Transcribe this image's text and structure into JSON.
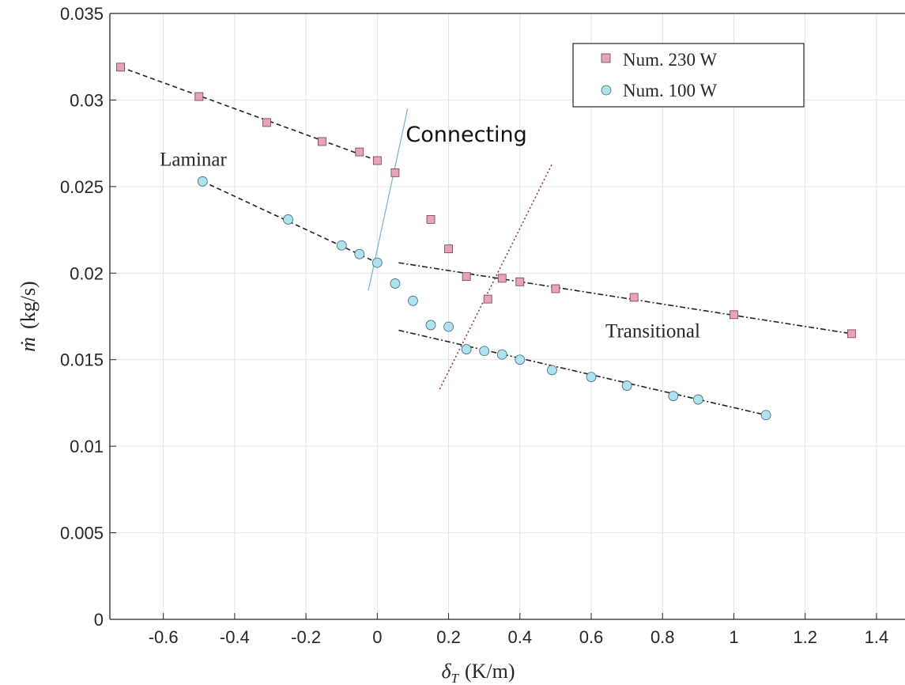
{
  "chart_data": {
    "type": "scatter",
    "xlabel": "δT (K/m)",
    "xlabel_main": "δ",
    "xlabel_sub": "T",
    "xlabel_units": "(K/m)",
    "ylabel": "ṁ (kg/s)",
    "ylabel_main": "ṁ",
    "ylabel_units": "(kg/s)",
    "xlim": [
      -0.75,
      1.48
    ],
    "ylim": [
      0,
      0.035
    ],
    "x_ticks": [
      -0.6,
      -0.4,
      -0.2,
      0,
      0.2,
      0.4,
      0.6,
      0.8,
      1,
      1.2,
      1.4
    ],
    "x_tick_labels": [
      "-0.6",
      "-0.4",
      "-0.2",
      "0",
      "0.2",
      "0.4",
      "0.6",
      "0.8",
      "1",
      "1.2",
      "1.4"
    ],
    "y_ticks": [
      0,
      0.005,
      0.01,
      0.015,
      0.02,
      0.025,
      0.03,
      0.035
    ],
    "y_tick_labels": [
      "0",
      "0.005",
      "0.01",
      "0.015",
      "0.02",
      "0.025",
      "0.03",
      "0.035"
    ],
    "grid": true,
    "legend_position": "top-right",
    "series": [
      {
        "name": "Num. 230 W",
        "marker": "square",
        "color": "#e8a3b6",
        "points": [
          [
            -0.72,
            0.0319
          ],
          [
            -0.5,
            0.0302
          ],
          [
            -0.31,
            0.0287
          ],
          [
            -0.155,
            0.0276
          ],
          [
            -0.05,
            0.027
          ],
          [
            0.0,
            0.0265
          ],
          [
            0.05,
            0.0258
          ],
          [
            0.15,
            0.0231
          ],
          [
            0.2,
            0.0214
          ],
          [
            0.25,
            0.0198
          ],
          [
            0.31,
            0.0185
          ],
          [
            0.35,
            0.0197
          ],
          [
            0.4,
            0.0195
          ],
          [
            0.5,
            0.0191
          ],
          [
            0.72,
            0.0186
          ],
          [
            1.0,
            0.0176
          ],
          [
            1.33,
            0.0165
          ]
        ]
      },
      {
        "name": "Num. 100 W",
        "marker": "circle",
        "color": "#aee2ee",
        "points": [
          [
            -0.49,
            0.0253
          ],
          [
            -0.25,
            0.0231
          ],
          [
            -0.1,
            0.0216
          ],
          [
            -0.05,
            0.0211
          ],
          [
            0.0,
            0.0206
          ],
          [
            0.05,
            0.0194
          ],
          [
            0.1,
            0.0184
          ],
          [
            0.15,
            0.017
          ],
          [
            0.2,
            0.0169
          ],
          [
            0.25,
            0.0156
          ],
          [
            0.3,
            0.0155
          ],
          [
            0.35,
            0.0153
          ],
          [
            0.4,
            0.015
          ],
          [
            0.49,
            0.0144
          ],
          [
            0.6,
            0.014
          ],
          [
            0.7,
            0.0135
          ],
          [
            0.83,
            0.0129
          ],
          [
            0.9,
            0.0127
          ],
          [
            1.09,
            0.0118
          ]
        ]
      }
    ],
    "fit_lines": [
      {
        "style": "dashed",
        "color": "#222222",
        "from": [
          -0.72,
          0.0319
        ],
        "to": [
          0.0,
          0.0265
        ]
      },
      {
        "style": "dashed",
        "color": "#222222",
        "from": [
          -0.49,
          0.0253
        ],
        "to": [
          0.0,
          0.0206
        ]
      },
      {
        "style": "dashdot",
        "color": "#222222",
        "from": [
          0.06,
          0.0206
        ],
        "to": [
          1.33,
          0.0165
        ]
      },
      {
        "style": "dashdot",
        "color": "#222222",
        "from": [
          0.06,
          0.0167
        ],
        "to": [
          1.09,
          0.0118
        ]
      },
      {
        "style": "solid",
        "color": "#7fb7cc",
        "from": [
          -0.025,
          0.019
        ],
        "to": [
          0.085,
          0.0295
        ]
      },
      {
        "style": "dotted",
        "color": "#9b3344",
        "from": [
          0.175,
          0.0133
        ],
        "to": [
          0.49,
          0.0263
        ]
      }
    ],
    "annotations": [
      {
        "text": "Laminar",
        "x": -0.61,
        "y": 0.0262,
        "font": "serif"
      },
      {
        "text": "Connecting",
        "x": 0.08,
        "y": 0.0276,
        "font": "sans"
      },
      {
        "text": "Transitional",
        "x": 0.64,
        "y": 0.0163,
        "font": "serif"
      }
    ]
  }
}
